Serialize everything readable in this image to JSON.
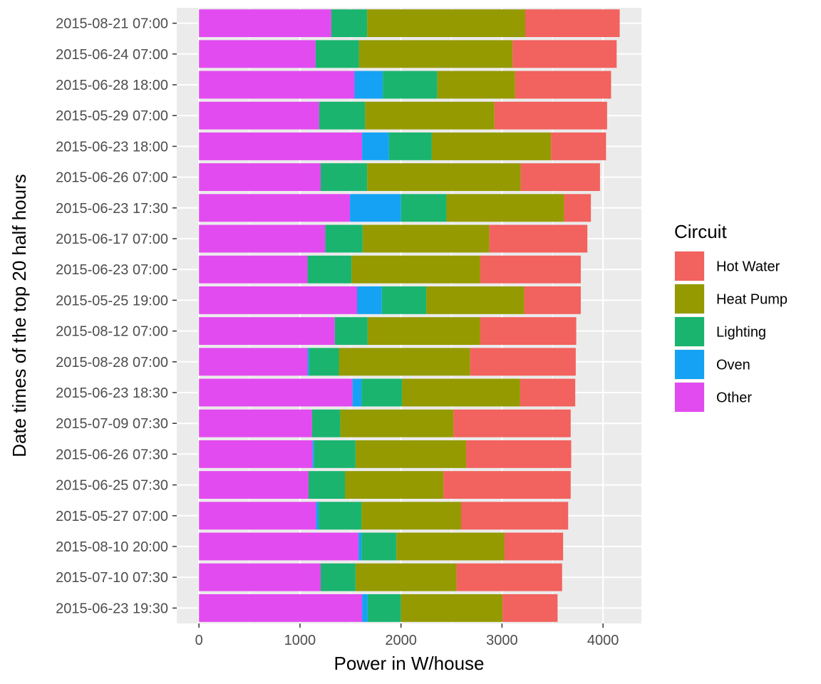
{
  "chart_data": {
    "type": "bar",
    "orientation": "horizontal",
    "stacked": true,
    "title": "",
    "xlabel": "Power in W/house",
    "ylabel": "Date times of the top 20 half hours",
    "xlim": [
      -220,
      4380
    ],
    "xticks": [
      0,
      1000,
      2000,
      3000,
      4000
    ],
    "grid": true,
    "legend_title": "Circuit",
    "legend_position": "right",
    "categories": [
      "2015-08-21 07:00",
      "2015-06-24 07:00",
      "2015-06-28 18:00",
      "2015-05-29 07:00",
      "2015-06-23 18:00",
      "2015-06-26 07:00",
      "2015-06-23 17:30",
      "2015-06-17 07:00",
      "2015-06-23 07:00",
      "2015-05-25 19:00",
      "2015-08-12 07:00",
      "2015-08-28 07:00",
      "2015-06-23 18:30",
      "2015-07-09 07:30",
      "2015-06-26 07:30",
      "2015-06-25 07:30",
      "2015-05-27 07:00",
      "2015-08-10 20:00",
      "2015-07-10 07:30",
      "2015-06-23 19:30"
    ],
    "series": [
      {
        "name": "Other",
        "color": "#E24BF0",
        "values": [
          1310,
          1155,
          1540,
          1190,
          1615,
          1205,
          1495,
          1250,
          1075,
          1565,
          1345,
          1075,
          1520,
          1120,
          1125,
          1085,
          1160,
          1580,
          1205,
          1615
        ]
      },
      {
        "name": "Oven",
        "color": "#15A2F4",
        "values": [
          0,
          0,
          280,
          0,
          265,
          0,
          505,
          0,
          0,
          245,
          0,
          15,
          90,
          0,
          15,
          0,
          25,
          30,
          0,
          55
        ]
      },
      {
        "name": "Lighting",
        "color": "#1AB46F",
        "values": [
          355,
          430,
          540,
          455,
          425,
          460,
          450,
          370,
          435,
          440,
          325,
          295,
          400,
          280,
          410,
          360,
          425,
          345,
          345,
          330
        ]
      },
      {
        "name": "Heat Pump",
        "color": "#959A00",
        "values": [
          1565,
          1520,
          770,
          1280,
          1180,
          1520,
          1165,
          1255,
          1275,
          970,
          1115,
          1300,
          1170,
          1120,
          1095,
          975,
          985,
          1070,
          1000,
          1005
        ]
      },
      {
        "name": "Hot Water",
        "color": "#F2625E",
        "values": [
          935,
          1030,
          950,
          1115,
          545,
          785,
          265,
          970,
          995,
          560,
          950,
          1045,
          545,
          1160,
          1040,
          1260,
          1060,
          580,
          1045,
          545
        ]
      }
    ],
    "legend_order": [
      "Hot Water",
      "Heat Pump",
      "Lighting",
      "Oven",
      "Other"
    ]
  }
}
